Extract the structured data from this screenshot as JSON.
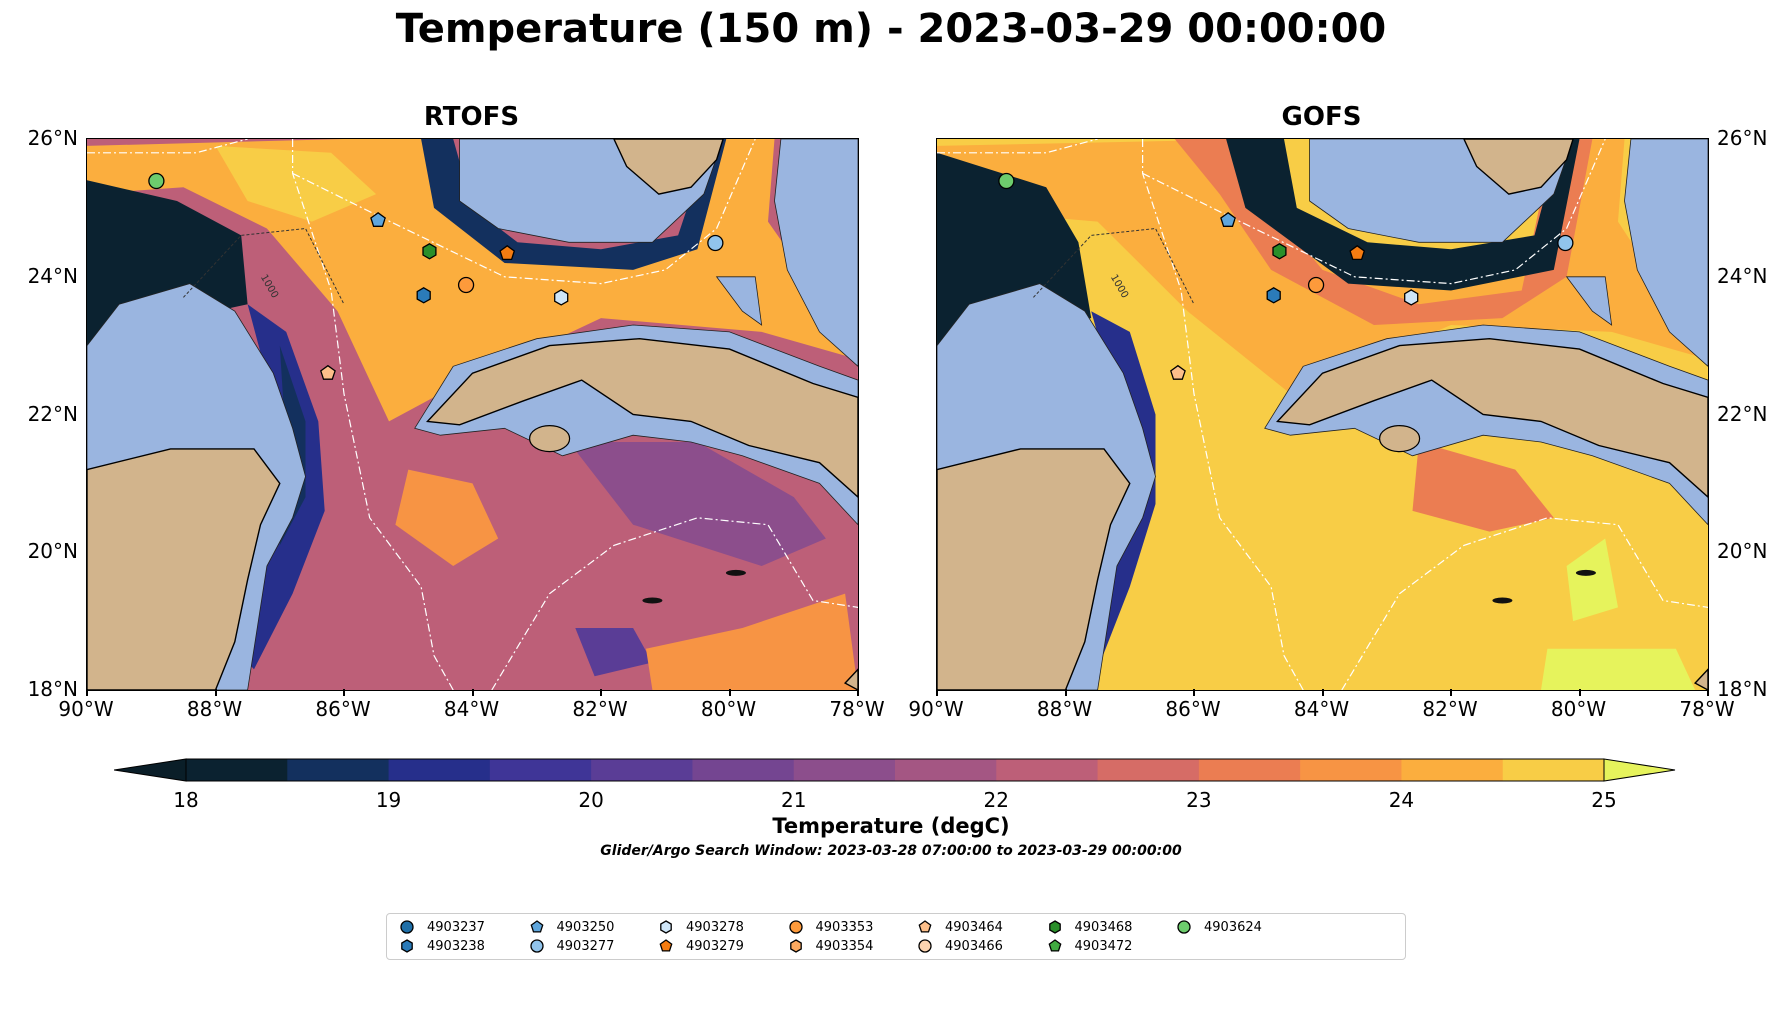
{
  "title": "Temperature (150 m) - 2023-03-29 00:00:00",
  "chart_data": {
    "type": "heatmap",
    "panels": [
      {
        "title": "RTOFS"
      },
      {
        "title": "GOFS"
      }
    ],
    "lon_ticks": [
      "90°W",
      "88°W",
      "86°W",
      "84°W",
      "82°W",
      "80°W",
      "78°W"
    ],
    "lat_ticks": [
      "26°N",
      "24°N",
      "22°N",
      "20°N",
      "18°N"
    ],
    "xlim": [
      -90,
      -78
    ],
    "ylim": [
      18,
      26
    ],
    "colorbar": {
      "label": "Temperature (degC)",
      "ticks": [
        "18",
        "19",
        "20",
        "21",
        "22",
        "23",
        "24",
        "25"
      ],
      "range": [
        18,
        25
      ],
      "step": 0.5,
      "extend": "both",
      "colors": [
        "#0b2230",
        "#13305e",
        "#262f8b",
        "#3f3597",
        "#5a3d96",
        "#744591",
        "#8c4e8c",
        "#a45683",
        "#bd5f78",
        "#d66c66",
        "#eb7d52",
        "#f79444",
        "#fbae3e",
        "#f8cd46"
      ],
      "under": "#0a1e28",
      "over": "#e6f35c"
    },
    "contour_label": "1000",
    "floats": [
      {
        "id": "4903237",
        "color": "#1f6fa8",
        "marker": "circle",
        "lon": null,
        "lat": null
      },
      {
        "id": "4903238",
        "color": "#2b7bb9",
        "marker": "hexagon",
        "lon": -84.76,
        "lat": 23.73
      },
      {
        "id": "4903250",
        "color": "#5fa6dc",
        "marker": "pentagon",
        "lon": -85.47,
        "lat": 24.82
      },
      {
        "id": "4903277",
        "color": "#91c4ec",
        "marker": "circle",
        "lon": -80.22,
        "lat": 24.49
      },
      {
        "id": "4903278",
        "color": "#cfe6f8",
        "marker": "hexagon",
        "lon": -82.62,
        "lat": 23.7
      },
      {
        "id": "4903279",
        "color": "#f57c11",
        "marker": "pentagon",
        "lon": -83.46,
        "lat": 24.34
      },
      {
        "id": "4903353",
        "color": "#fd9a3b",
        "marker": "circle",
        "lon": -84.1,
        "lat": 23.88
      },
      {
        "id": "4903354",
        "color": "#fdaa60",
        "marker": "hexagon",
        "lon": null,
        "lat": null
      },
      {
        "id": "4903464",
        "color": "#fdbf8a",
        "marker": "pentagon",
        "lon": -86.25,
        "lat": 22.6
      },
      {
        "id": "4903466",
        "color": "#fdd4b0",
        "marker": "circle",
        "lon": null,
        "lat": null
      },
      {
        "id": "4903468",
        "color": "#2a8f2a",
        "marker": "hexagon",
        "lon": -84.67,
        "lat": 24.37
      },
      {
        "id": "4903472",
        "color": "#41ab41",
        "marker": "pentagon",
        "lon": null,
        "lat": null
      },
      {
        "id": "4903624",
        "color": "#6dcc6d",
        "marker": "circle",
        "lon": -88.92,
        "lat": 25.39
      }
    ]
  },
  "search_window": "Glider/Argo Search Window: 2023-03-28 07:00:00 to 2023-03-29 00:00:00"
}
